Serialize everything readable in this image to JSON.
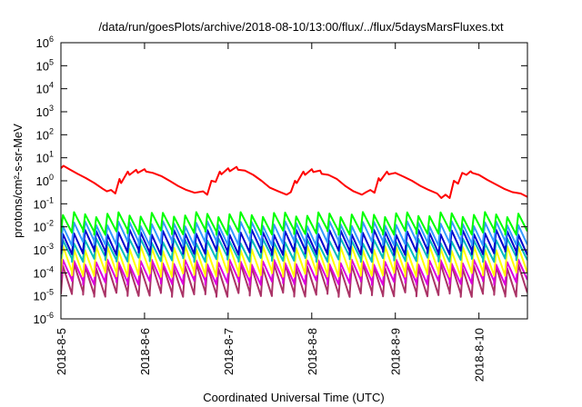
{
  "chart_data": {
    "type": "line",
    "title": "/data/run/goesPlots/archive/2018-08-10/13:00/flux/../flux/5daysMarsFluxes.txt",
    "xlabel": "Coordinated Universal Time (UTC)",
    "ylabel": "protons/cm²-s-sr-MeV",
    "yscale": "log",
    "ylim": [
      1e-06,
      1000000.0
    ],
    "xlim": [
      "2018-08-05",
      "2018-08-10 13:00"
    ],
    "xlim_days": [
      0,
      5.58
    ],
    "x_ticks": [
      "2018-8-5",
      "2018-8-6",
      "2018-8-7",
      "2018-8-8",
      "2018-8-9",
      "2018-8-10"
    ],
    "y_ticks": [
      {
        "base": "10",
        "exp": "6"
      },
      {
        "base": "10",
        "exp": "5"
      },
      {
        "base": "10",
        "exp": "4"
      },
      {
        "base": "10",
        "exp": "3"
      },
      {
        "base": "10",
        "exp": "2"
      },
      {
        "base": "10",
        "exp": "1"
      },
      {
        "base": "10",
        "exp": "0"
      },
      {
        "base": "10",
        "exp": "-1"
      },
      {
        "base": "10",
        "exp": "-2"
      },
      {
        "base": "10",
        "exp": "-3"
      },
      {
        "base": "10",
        "exp": "-4"
      },
      {
        "base": "10",
        "exp": "-5"
      },
      {
        "base": "10",
        "exp": "-6"
      }
    ],
    "grid": false,
    "legend": "none",
    "series": [
      {
        "color": "#ff0000",
        "x": [
          0,
          0.03,
          0.1,
          0.2,
          0.3,
          0.4,
          0.5,
          0.55,
          0.6,
          0.65,
          0.7,
          0.72,
          0.8,
          0.82,
          0.9,
          0.92,
          1.0,
          1.02,
          1.1,
          1.2,
          1.3,
          1.4,
          1.5,
          1.6,
          1.7,
          1.75,
          1.8,
          1.85,
          1.9,
          1.92,
          2.0,
          2.02,
          2.1,
          2.12,
          2.2,
          2.3,
          2.4,
          2.5,
          2.6,
          2.7,
          2.75,
          2.8,
          2.82,
          2.9,
          2.92,
          3.0,
          3.02,
          3.1,
          3.12,
          3.2,
          3.3,
          3.4,
          3.5,
          3.6,
          3.65,
          3.7,
          3.75,
          3.8,
          3.82,
          3.9,
          3.92,
          4.0,
          4.1,
          4.2,
          4.3,
          4.4,
          4.5,
          4.55,
          4.6,
          4.65,
          4.7,
          4.75,
          4.8,
          4.85,
          4.9,
          4.92,
          5.0,
          5.1,
          5.2,
          5.3,
          5.4,
          5.5,
          5.58
        ],
        "y": [
          3.5,
          4.5,
          3.2,
          2.0,
          1.3,
          0.8,
          0.45,
          0.35,
          0.4,
          0.28,
          1.2,
          0.8,
          2.5,
          1.8,
          3.0,
          2.2,
          3.2,
          2.5,
          2.2,
          1.6,
          1.0,
          0.6,
          0.4,
          0.3,
          0.35,
          0.25,
          1.0,
          0.9,
          2.5,
          1.9,
          3.5,
          2.6,
          4.0,
          3.0,
          2.8,
          1.8,
          1.0,
          0.5,
          0.35,
          0.25,
          0.32,
          1.0,
          0.8,
          2.5,
          1.8,
          3.2,
          2.4,
          2.8,
          2.0,
          1.8,
          1.2,
          0.6,
          0.35,
          0.25,
          0.32,
          0.4,
          0.3,
          1.3,
          1.0,
          2.5,
          1.9,
          2.2,
          1.5,
          1.0,
          0.6,
          0.4,
          0.28,
          0.18,
          0.25,
          0.18,
          1.0,
          0.75,
          2.2,
          1.8,
          2.6,
          2.2,
          1.8,
          1.1,
          0.7,
          0.45,
          0.32,
          0.28,
          0.2
        ]
      },
      {
        "color": "#00ff00",
        "cycles": 42,
        "low": 0.006,
        "high": 0.035
      },
      {
        "color": "#3399ff",
        "cycles": 42,
        "low": 0.002,
        "high": 0.014
      },
      {
        "color": "#0000cc",
        "cycles": 42,
        "low": 0.0008,
        "high": 0.006
      },
      {
        "color": "#00bbbb",
        "cycles": 42,
        "low": 0.0004,
        "high": 0.0025
      },
      {
        "color": "#ffff00",
        "cycles": 42,
        "low": 9e-05,
        "high": 0.0012
      },
      {
        "color": "#dd00dd",
        "cycles": 42,
        "low": 4e-05,
        "high": 0.0003
      },
      {
        "color": "#aa3366",
        "cycles": 42,
        "low": 1.2e-05,
        "high": 0.0002
      }
    ]
  }
}
